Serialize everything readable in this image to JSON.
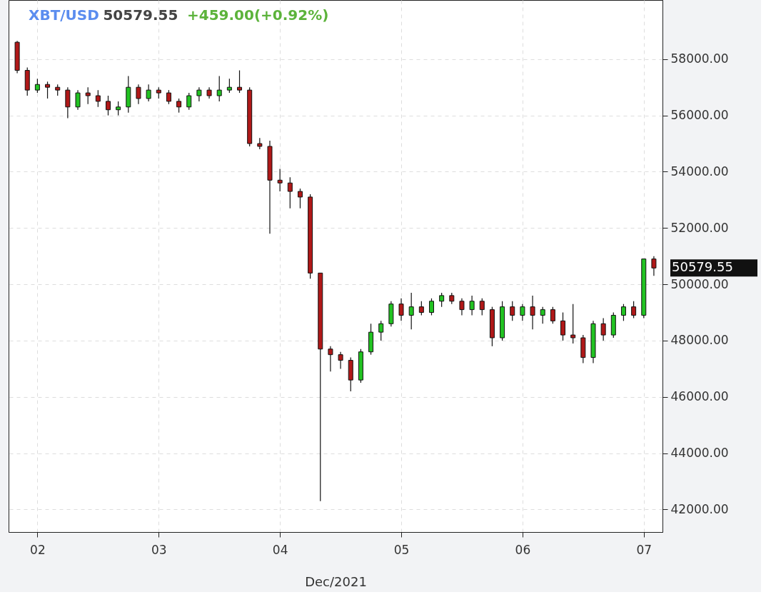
{
  "chart_data": {
    "type": "candlestick",
    "title": "XBT/USD",
    "annotations": [
      "50579.55",
      "+459.00(+0.92%)",
      "50579.55"
    ],
    "xlabel": "Dec/2021",
    "x": [
      "2021-12-01T20:00",
      "2021-12-01T22:00",
      "2021-12-02T00:00",
      "2021-12-02T02:00",
      "2021-12-02T04:00",
      "2021-12-02T06:00",
      "2021-12-02T08:00",
      "2021-12-02T10:00",
      "2021-12-02T12:00",
      "2021-12-02T14:00",
      "2021-12-02T16:00",
      "2021-12-02T18:00",
      "2021-12-02T20:00",
      "2021-12-02T22:00",
      "2021-12-03T00:00",
      "2021-12-03T02:00",
      "2021-12-03T04:00",
      "2021-12-03T06:00",
      "2021-12-03T08:00",
      "2021-12-03T10:00",
      "2021-12-03T12:00",
      "2021-12-03T14:00",
      "2021-12-03T16:00",
      "2021-12-03T18:00",
      "2021-12-03T20:00",
      "2021-12-03T22:00",
      "2021-12-04T00:00",
      "2021-12-04T02:00",
      "2021-12-04T04:00",
      "2021-12-04T06:00",
      "2021-12-04T08:00",
      "2021-12-04T10:00",
      "2021-12-04T12:00",
      "2021-12-04T14:00",
      "2021-12-04T16:00",
      "2021-12-04T18:00",
      "2021-12-04T20:00",
      "2021-12-04T22:00",
      "2021-12-05T00:00",
      "2021-12-05T02:00",
      "2021-12-05T04:00",
      "2021-12-05T06:00",
      "2021-12-05T08:00",
      "2021-12-05T10:00",
      "2021-12-05T12:00",
      "2021-12-05T14:00",
      "2021-12-05T16:00",
      "2021-12-05T18:00",
      "2021-12-05T20:00",
      "2021-12-05T22:00",
      "2021-12-06T00:00",
      "2021-12-06T02:00",
      "2021-12-06T04:00",
      "2021-12-06T06:00",
      "2021-12-06T08:00",
      "2021-12-06T10:00",
      "2021-12-06T12:00",
      "2021-12-06T14:00",
      "2021-12-06T16:00",
      "2021-12-06T18:00",
      "2021-12-06T20:00",
      "2021-12-06T22:00",
      "2021-12-07T00:00",
      "2021-12-07T02:00"
    ],
    "ohlc": [
      [
        58600,
        58650,
        57500,
        57600
      ],
      [
        57600,
        57700,
        56700,
        56900
      ],
      [
        56900,
        57300,
        56800,
        57100
      ],
      [
        57100,
        57200,
        56600,
        57000
      ],
      [
        57000,
        57100,
        56700,
        56900
      ],
      [
        56900,
        57000,
        55900,
        56300
      ],
      [
        56300,
        56900,
        56200,
        56800
      ],
      [
        56800,
        57000,
        56400,
        56700
      ],
      [
        56700,
        56900,
        56300,
        56500
      ],
      [
        56500,
        56700,
        56000,
        56200
      ],
      [
        56200,
        56500,
        56000,
        56300
      ],
      [
        56300,
        57400,
        56100,
        57000
      ],
      [
        57000,
        57100,
        56400,
        56600
      ],
      [
        56600,
        57100,
        56500,
        56900
      ],
      [
        56900,
        57000,
        56600,
        56800
      ],
      [
        56800,
        56900,
        56400,
        56500
      ],
      [
        56500,
        56600,
        56100,
        56300
      ],
      [
        56300,
        56800,
        56200,
        56700
      ],
      [
        56700,
        57000,
        56500,
        56900
      ],
      [
        56900,
        57000,
        56600,
        56700
      ],
      [
        56700,
        57400,
        56500,
        56900
      ],
      [
        56900,
        57300,
        56800,
        57000
      ],
      [
        57000,
        57600,
        56800,
        56900
      ],
      [
        56900,
        57000,
        54900,
        55000
      ],
      [
        55000,
        55200,
        54800,
        54900
      ],
      [
        54900,
        55100,
        51800,
        53700
      ],
      [
        53700,
        54100,
        53300,
        53600
      ],
      [
        53600,
        53800,
        52700,
        53300
      ],
      [
        53300,
        53400,
        52700,
        53100
      ],
      [
        53100,
        53200,
        50200,
        50400
      ],
      [
        50400,
        50400,
        42300,
        47700
      ],
      [
        47700,
        47800,
        46900,
        47500
      ],
      [
        47500,
        47600,
        47000,
        47300
      ],
      [
        47300,
        47400,
        46200,
        46600
      ],
      [
        46600,
        47700,
        46500,
        47600
      ],
      [
        47600,
        48600,
        47500,
        48300
      ],
      [
        48300,
        48700,
        48000,
        48600
      ],
      [
        48600,
        49400,
        48500,
        49300
      ],
      [
        49300,
        49500,
        48700,
        48900
      ],
      [
        48900,
        49700,
        48400,
        49200
      ],
      [
        49200,
        49400,
        48900,
        49000
      ],
      [
        49000,
        49500,
        48900,
        49400
      ],
      [
        49400,
        49700,
        49200,
        49600
      ],
      [
        49600,
        49700,
        49300,
        49400
      ],
      [
        49400,
        49500,
        48900,
        49100
      ],
      [
        49100,
        49600,
        48900,
        49400
      ],
      [
        49400,
        49500,
        48900,
        49100
      ],
      [
        49100,
        49200,
        47800,
        48100
      ],
      [
        48100,
        49400,
        48000,
        49200
      ],
      [
        49200,
        49400,
        48700,
        48900
      ],
      [
        48900,
        49300,
        48700,
        49200
      ],
      [
        49200,
        49600,
        48400,
        48900
      ],
      [
        48900,
        49200,
        48600,
        49100
      ],
      [
        49100,
        49200,
        48600,
        48700
      ],
      [
        48700,
        49000,
        48000,
        48200
      ],
      [
        48200,
        49300,
        47900,
        48100
      ],
      [
        48100,
        48200,
        47200,
        47400
      ],
      [
        47400,
        48700,
        47200,
        48600
      ],
      [
        48600,
        48800,
        48000,
        48200
      ],
      [
        48200,
        49000,
        48100,
        48900
      ],
      [
        48900,
        49300,
        48700,
        49200
      ],
      [
        49200,
        49400,
        48800,
        48900
      ],
      [
        48900,
        50900,
        48800,
        50900
      ],
      [
        50900,
        51000,
        50300,
        50579.55
      ]
    ],
    "xlim": [
      "2021-12-01T19:00",
      "2021-12-07T03:00"
    ],
    "xticks": [
      {
        "value": "2021-12-02T00:00",
        "label": "02"
      },
      {
        "value": "2021-12-03T00:00",
        "label": "03"
      },
      {
        "value": "2021-12-04T00:00",
        "label": "04"
      },
      {
        "value": "2021-12-05T00:00",
        "label": "05"
      },
      {
        "value": "2021-12-06T00:00",
        "label": "06"
      },
      {
        "value": "2021-12-07T00:00",
        "label": "07"
      }
    ],
    "ylim": [
      41200,
      60100
    ],
    "yticks": [
      {
        "value": 42000,
        "label": "42000.00"
      },
      {
        "value": 44000,
        "label": "44000.00"
      },
      {
        "value": 46000,
        "label": "46000.00"
      },
      {
        "value": 48000,
        "label": "48000.00"
      },
      {
        "value": 50000,
        "label": "50000.00"
      },
      {
        "value": 52000,
        "label": "52000.00"
      },
      {
        "value": 54000,
        "label": "54000.00"
      },
      {
        "value": 56000,
        "label": "56000.00"
      },
      {
        "value": 58000,
        "label": "58000.00"
      }
    ],
    "grid": true
  }
}
